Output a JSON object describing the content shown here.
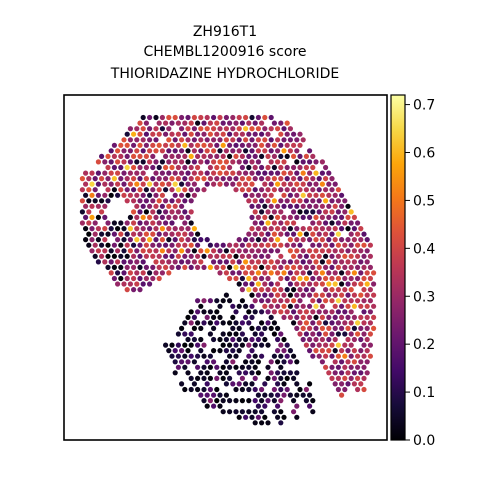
{
  "chart_data": {
    "type": "scatter",
    "title_lines": [
      "ZH916T1",
      "CHEMBL1200916 score",
      "THIORIDAZINE HYDROCHLORIDE"
    ],
    "xlabel": "",
    "ylabel": "",
    "axis_ticks_visible": false,
    "grid": false,
    "legend": "none",
    "colormap": "inferno",
    "colorbar": {
      "placement": "right",
      "range": [
        0.0,
        0.72
      ],
      "ticks": [
        0.0,
        0.1,
        0.2,
        0.3,
        0.4,
        0.5,
        0.6,
        0.7
      ],
      "tick_labels": [
        "0.0",
        "0.1",
        "0.2",
        "0.3",
        "0.4",
        "0.5",
        "0.6",
        "0.7"
      ]
    },
    "marker": "hexagonal spot",
    "description_regions": [
      {
        "region": "upper tissue band",
        "typical_score": 0.3
      },
      {
        "region": "right lobe",
        "typical_score": 0.3
      },
      {
        "region": "lower-left cluster",
        "typical_score": 0.05
      }
    ]
  }
}
